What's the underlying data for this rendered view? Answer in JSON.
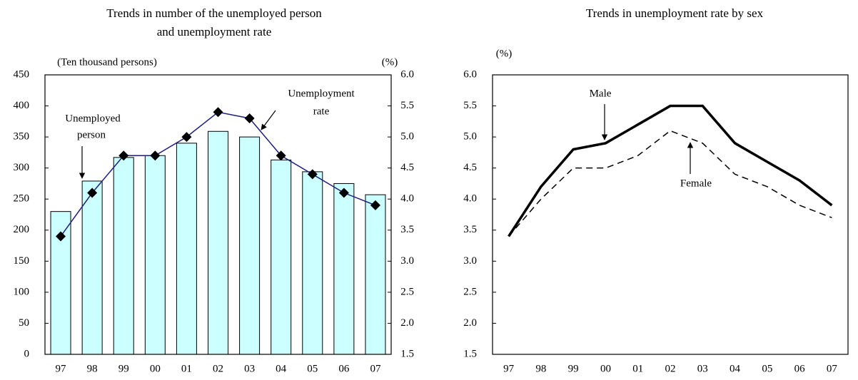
{
  "chart_data": [
    {
      "type": "bar_line",
      "title": [
        "Trends in number of the unemployed person",
        "and unemployment rate"
      ],
      "y_label": "(Ten thousand persons)",
      "y2_label": "(%)",
      "annotations": [
        [
          "Unemployed",
          "person"
        ],
        [
          "Unemployment",
          "rate"
        ]
      ],
      "categories": [
        "97",
        "98",
        "99",
        "00",
        "01",
        "02",
        "03",
        "04",
        "05",
        "06",
        "07"
      ],
      "series": [
        {
          "type": "bar",
          "color": "#ccffff",
          "values": [
            230,
            279,
            317,
            320,
            340,
            359,
            350,
            313,
            294,
            275,
            257
          ]
        },
        {
          "type": "line",
          "axis": "y2",
          "color": "#1f1f7a",
          "values": [
            3.4,
            4.1,
            4.7,
            4.7,
            5.0,
            5.4,
            5.3,
            4.7,
            4.4,
            4.1,
            3.9
          ]
        }
      ],
      "ylim": [
        0,
        450
      ],
      "yticks": [
        0,
        50,
        100,
        150,
        200,
        250,
        300,
        350,
        400,
        450
      ],
      "y2lim": [
        1.5,
        6.0
      ],
      "y2ticks": [
        1.5,
        {
          "value": 2,
          "label": "2.0"
        },
        2.5,
        {
          "value": 3,
          "label": "3.0"
        },
        3.5,
        {
          "value": 4,
          "label": "4.0"
        },
        4.5,
        {
          "value": 5,
          "label": "5.0"
        },
        5.5,
        {
          "value": 6,
          "label": "6.0"
        }
      ]
    },
    {
      "type": "line",
      "title": [
        "Trends in unemployment rate by sex"
      ],
      "y_label": "(%)",
      "categories": [
        "97",
        "98",
        "99",
        "00",
        "01",
        "02",
        "03",
        "04",
        "05",
        "06",
        "07"
      ],
      "series": [
        {
          "name": "Male",
          "color": "#000000",
          "values": [
            3.4,
            4.2,
            4.8,
            4.9,
            5.2,
            5.5,
            5.5,
            4.9,
            4.6,
            4.3,
            3.9
          ]
        },
        {
          "name": "Female",
          "color": "#000000",
          "values": [
            3.4,
            4.0,
            4.5,
            4.5,
            4.7,
            5.1,
            4.9,
            4.4,
            4.2,
            3.9,
            3.7
          ]
        }
      ],
      "ylim": [
        1.5,
        6.0
      ],
      "yticks": [
        1.5,
        {
          "value": 2,
          "label": "2.0"
        },
        2.5,
        {
          "value": 3,
          "label": "3.0"
        },
        3.5,
        {
          "value": 4,
          "label": "4.0"
        },
        4.5,
        {
          "value": 5,
          "label": "5.0"
        },
        5.5,
        {
          "value": 6,
          "label": "6.0"
        }
      ]
    }
  ]
}
